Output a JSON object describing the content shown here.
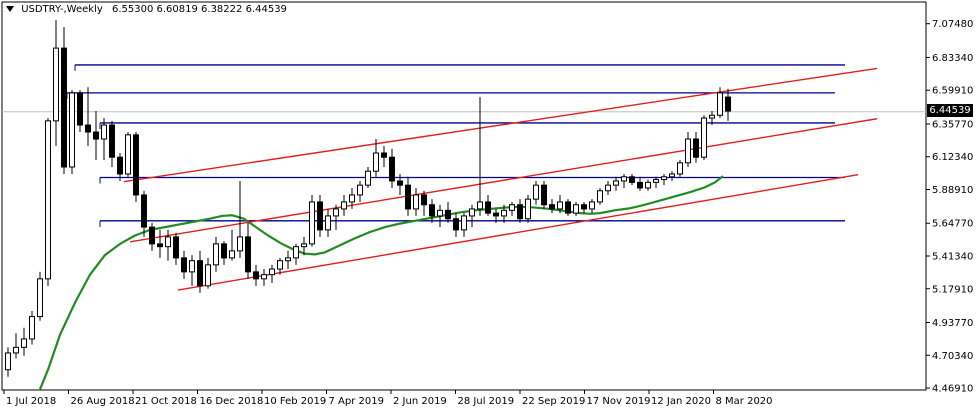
{
  "header": {
    "symbol_label": "USDTRY-,Weekly",
    "ohlc": "6.55300 6.60819 6.38222 6.44539"
  },
  "current_price_label": "6.44539",
  "chart_data": {
    "type": "candlestick",
    "title": "USDTRY-,Weekly",
    "y_ticks": [
      "7.07480",
      "6.83340",
      "6.59910",
      "6.35770",
      "6.12340",
      "5.88910",
      "5.64770",
      "5.41340",
      "5.17910",
      "4.93770",
      "4.70340",
      "4.46910"
    ],
    "x_ticks": [
      "1 Jul 2018",
      "26 Aug 2018",
      "21 Oct 2018",
      "16 Dec 2018",
      "10 Feb 2019",
      "7 Apr 2019",
      "2 Jun 2019",
      "28 Jul 2019",
      "22 Sep 2019",
      "17 Nov 2019",
      "12 Jan 2020",
      "8 Mar 2020"
    ],
    "ylim": [
      4.455,
      7.23
    ],
    "candles": [
      [
        4.6,
        4.76,
        4.55,
        4.72
      ],
      [
        4.72,
        4.86,
        4.68,
        4.76
      ],
      [
        4.76,
        4.9,
        4.7,
        4.82
      ],
      [
        4.82,
        5.02,
        4.78,
        4.98
      ],
      [
        4.98,
        5.3,
        4.95,
        5.25
      ],
      [
        5.25,
        6.4,
        5.2,
        6.38
      ],
      [
        6.38,
        7.1,
        6.2,
        6.9
      ],
      [
        6.9,
        7.05,
        6.0,
        6.05
      ],
      [
        6.05,
        6.6,
        6.0,
        6.58
      ],
      [
        6.58,
        6.6,
        6.3,
        6.35
      ],
      [
        6.35,
        6.62,
        6.2,
        6.3
      ],
      [
        6.3,
        6.45,
        6.1,
        6.25
      ],
      [
        6.25,
        6.4,
        6.1,
        6.35
      ],
      [
        6.35,
        6.38,
        6.05,
        6.12
      ],
      [
        6.12,
        6.15,
        5.95,
        6.0
      ],
      [
        6.0,
        6.3,
        5.98,
        6.28
      ],
      [
        6.28,
        6.3,
        5.8,
        5.85
      ],
      [
        5.85,
        5.88,
        5.55,
        5.62
      ],
      [
        5.62,
        5.65,
        5.45,
        5.5
      ],
      [
        5.5,
        5.6,
        5.4,
        5.48
      ],
      [
        5.48,
        5.6,
        5.38,
        5.55
      ],
      [
        5.55,
        5.58,
        5.35,
        5.4
      ],
      [
        5.4,
        5.45,
        5.25,
        5.3
      ],
      [
        5.3,
        5.42,
        5.2,
        5.38
      ],
      [
        5.38,
        5.45,
        5.15,
        5.2
      ],
      [
        5.2,
        5.4,
        5.18,
        5.35
      ],
      [
        5.35,
        5.55,
        5.3,
        5.5
      ],
      [
        5.5,
        5.52,
        5.35,
        5.4
      ],
      [
        5.4,
        5.6,
        5.38,
        5.45
      ],
      [
        5.45,
        5.95,
        5.4,
        5.55
      ],
      [
        5.55,
        5.65,
        5.25,
        5.3
      ],
      [
        5.3,
        5.35,
        5.2,
        5.25
      ],
      [
        5.25,
        5.32,
        5.2,
        5.28
      ],
      [
        5.28,
        5.35,
        5.22,
        5.32
      ],
      [
        5.32,
        5.4,
        5.28,
        5.38
      ],
      [
        5.38,
        5.45,
        5.32,
        5.4
      ],
      [
        5.4,
        5.5,
        5.35,
        5.48
      ],
      [
        5.48,
        5.55,
        5.42,
        5.5
      ],
      [
        5.5,
        5.85,
        5.48,
        5.8
      ],
      [
        5.8,
        5.85,
        5.55,
        5.6
      ],
      [
        5.6,
        5.75,
        5.55,
        5.7
      ],
      [
        5.7,
        5.78,
        5.6,
        5.75
      ],
      [
        5.75,
        5.85,
        5.7,
        5.8
      ],
      [
        5.8,
        5.9,
        5.75,
        5.85
      ],
      [
        5.85,
        5.95,
        5.8,
        5.92
      ],
      [
        5.92,
        6.05,
        5.9,
        6.02
      ],
      [
        6.02,
        6.25,
        5.98,
        6.15
      ],
      [
        6.15,
        6.2,
        6.05,
        6.12
      ],
      [
        6.12,
        6.18,
        5.9,
        5.95
      ],
      [
        5.95,
        6.0,
        5.85,
        5.92
      ],
      [
        5.92,
        5.98,
        5.7,
        5.75
      ],
      [
        5.75,
        5.9,
        5.7,
        5.85
      ],
      [
        5.85,
        5.88,
        5.7,
        5.78
      ],
      [
        5.78,
        5.82,
        5.65,
        5.7
      ],
      [
        5.7,
        5.78,
        5.62,
        5.74
      ],
      [
        5.74,
        5.8,
        5.65,
        5.68
      ],
      [
        5.68,
        5.72,
        5.55,
        5.6
      ],
      [
        5.6,
        5.72,
        5.55,
        5.7
      ],
      [
        5.7,
        5.78,
        5.62,
        5.75
      ],
      [
        5.75,
        6.55,
        5.7,
        5.8
      ],
      [
        5.8,
        5.85,
        5.7,
        5.72
      ],
      [
        5.72,
        5.75,
        5.65,
        5.7
      ],
      [
        5.7,
        5.78,
        5.65,
        5.74
      ],
      [
        5.74,
        5.8,
        5.7,
        5.78
      ],
      [
        5.78,
        5.82,
        5.65,
        5.68
      ],
      [
        5.68,
        5.85,
        5.65,
        5.82
      ],
      [
        5.82,
        5.95,
        5.78,
        5.92
      ],
      [
        5.92,
        5.95,
        5.75,
        5.78
      ],
      [
        5.78,
        5.82,
        5.72,
        5.75
      ],
      [
        5.75,
        5.85,
        5.72,
        5.8
      ],
      [
        5.8,
        5.82,
        5.7,
        5.72
      ],
      [
        5.72,
        5.8,
        5.7,
        5.78
      ],
      [
        5.78,
        5.8,
        5.72,
        5.75
      ],
      [
        5.75,
        5.82,
        5.72,
        5.8
      ],
      [
        5.8,
        5.9,
        5.78,
        5.88
      ],
      [
        5.88,
        5.95,
        5.85,
        5.92
      ],
      [
        5.92,
        5.98,
        5.88,
        5.95
      ],
      [
        5.95,
        6.0,
        5.9,
        5.98
      ],
      [
        5.98,
        6.0,
        5.92,
        5.94
      ],
      [
        5.94,
        5.98,
        5.88,
        5.9
      ],
      [
        5.9,
        5.96,
        5.88,
        5.94
      ],
      [
        5.94,
        5.98,
        5.9,
        5.96
      ],
      [
        5.96,
        6.0,
        5.92,
        5.98
      ],
      [
        5.98,
        6.02,
        5.95,
        6.0
      ],
      [
        6.0,
        6.1,
        5.98,
        6.08
      ],
      [
        6.08,
        6.3,
        6.05,
        6.25
      ],
      [
        6.25,
        6.3,
        6.08,
        6.12
      ],
      [
        6.12,
        6.42,
        6.1,
        6.4
      ],
      [
        6.4,
        6.45,
        6.35,
        6.42
      ],
      [
        6.42,
        6.62,
        6.4,
        6.58
      ],
      [
        6.55,
        6.61,
        6.38,
        6.45
      ]
    ],
    "moving_average": [
      [
        40,
        4.46
      ],
      [
        48,
        4.6
      ],
      [
        60,
        4.85
      ],
      [
        75,
        5.08
      ],
      [
        90,
        5.28
      ],
      [
        105,
        5.42
      ],
      [
        120,
        5.5
      ],
      [
        135,
        5.56
      ],
      [
        150,
        5.6
      ],
      [
        165,
        5.62
      ],
      [
        180,
        5.64
      ],
      [
        195,
        5.66
      ],
      [
        210,
        5.68
      ],
      [
        222,
        5.7
      ],
      [
        232,
        5.705
      ],
      [
        244,
        5.68
      ],
      [
        256,
        5.62
      ],
      [
        268,
        5.56
      ],
      [
        282,
        5.5
      ],
      [
        295,
        5.455
      ],
      [
        305,
        5.43
      ],
      [
        315,
        5.425
      ],
      [
        325,
        5.44
      ],
      [
        340,
        5.49
      ],
      [
        355,
        5.54
      ],
      [
        370,
        5.585
      ],
      [
        385,
        5.62
      ],
      [
        400,
        5.645
      ],
      [
        415,
        5.665
      ],
      [
        430,
        5.685
      ],
      [
        445,
        5.705
      ],
      [
        460,
        5.725
      ],
      [
        475,
        5.74
      ],
      [
        490,
        5.75
      ],
      [
        505,
        5.76
      ],
      [
        520,
        5.765
      ],
      [
        535,
        5.76
      ],
      [
        550,
        5.75
      ],
      [
        565,
        5.735
      ],
      [
        580,
        5.72
      ],
      [
        590,
        5.715
      ],
      [
        600,
        5.72
      ],
      [
        615,
        5.74
      ],
      [
        630,
        5.755
      ],
      [
        645,
        5.78
      ],
      [
        660,
        5.81
      ],
      [
        675,
        5.84
      ],
      [
        690,
        5.87
      ],
      [
        705,
        5.905
      ],
      [
        715,
        5.94
      ],
      [
        723,
        5.985
      ]
    ],
    "horizontal_levels": [
      {
        "x0": 75,
        "x1": 845,
        "y": 6.78
      },
      {
        "x0": 67,
        "x1": 835,
        "y": 6.58
      },
      {
        "x0": 100,
        "x1": 835,
        "y": 6.365
      },
      {
        "x0": 100,
        "x1": 845,
        "y": 5.975
      },
      {
        "x0": 100,
        "x1": 845,
        "y": 5.665
      }
    ],
    "channel_lines": [
      {
        "x0": 124,
        "y0": 5.945,
        "x1": 877,
        "y1": 6.755
      },
      {
        "x0": 130,
        "y0": 5.515,
        "x1": 877,
        "y1": 6.395
      },
      {
        "x0": 178,
        "y0": 5.17,
        "x1": 858,
        "y1": 5.995
      }
    ],
    "current_price": 6.44539,
    "colors": {
      "bull": "#ffffff",
      "bear": "#000000",
      "wick": "#000000",
      "level": "#00008b",
      "channel": "#e02020",
      "ma": "#228b22",
      "current_line": "#c0c0c0"
    }
  }
}
